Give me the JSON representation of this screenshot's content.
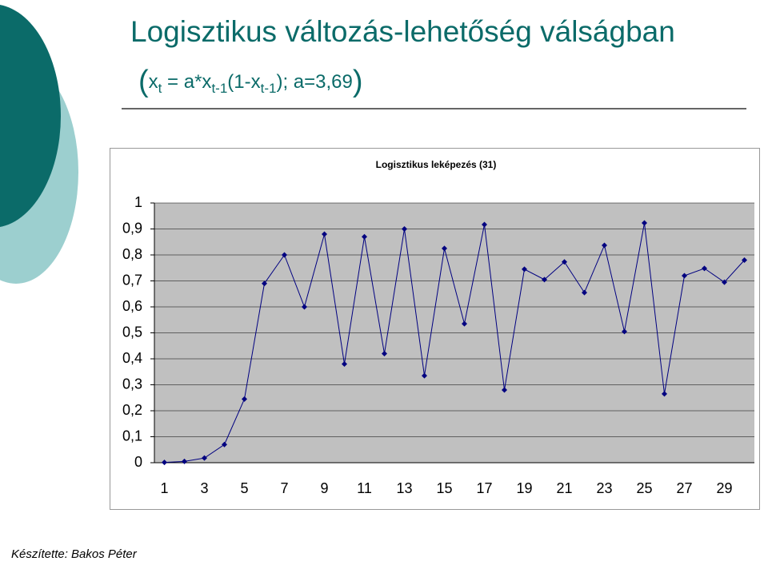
{
  "title": "Logisztikus változás-lehetőség válságban",
  "subtitle_parts": [
    "(",
    "x",
    "t",
    " = a*x",
    "t-1",
    "(1-x",
    "t-1",
    "); a=3,69",
    ")"
  ],
  "footer": "Készítette: Bakos Péter",
  "chart_data": {
    "type": "line",
    "title": "Logisztikus leképezés (31)",
    "categories": [
      "1",
      null,
      "3",
      null,
      "5",
      null,
      "7",
      null,
      "9",
      null,
      "11",
      null,
      "13",
      null,
      "15",
      null,
      "17",
      null,
      "19",
      null,
      "21",
      null,
      "23",
      null,
      "25",
      null,
      "27",
      null,
      "29",
      null
    ],
    "values": [
      0.001,
      0.005,
      0.018,
      0.07,
      0.245,
      0.69,
      0.8,
      0.6,
      0.88,
      0.38,
      0.87,
      0.42,
      0.9,
      0.335,
      0.825,
      0.535,
      0.917,
      0.28,
      0.745,
      0.705,
      0.773,
      0.655,
      0.837,
      0.505,
      0.923,
      0.265,
      0.72,
      0.748,
      0.695,
      0.78
    ],
    "color": "#000080",
    "ylim": [
      0,
      1
    ],
    "yticks": [
      0,
      {
        "value": 0.1,
        "label": "0,1"
      },
      {
        "value": 0.2,
        "label": "0,2"
      },
      {
        "value": 0.3,
        "label": "0,3"
      },
      {
        "value": 0.4,
        "label": "0,4"
      },
      {
        "value": 0.5,
        "label": "0,5"
      },
      {
        "value": 0.6,
        "label": "0,6"
      },
      {
        "value": 0.7,
        "label": "0,7"
      },
      {
        "value": 0.8,
        "label": "0,8"
      },
      {
        "value": 0.9,
        "label": "0,9"
      },
      1
    ],
    "grid": true
  }
}
